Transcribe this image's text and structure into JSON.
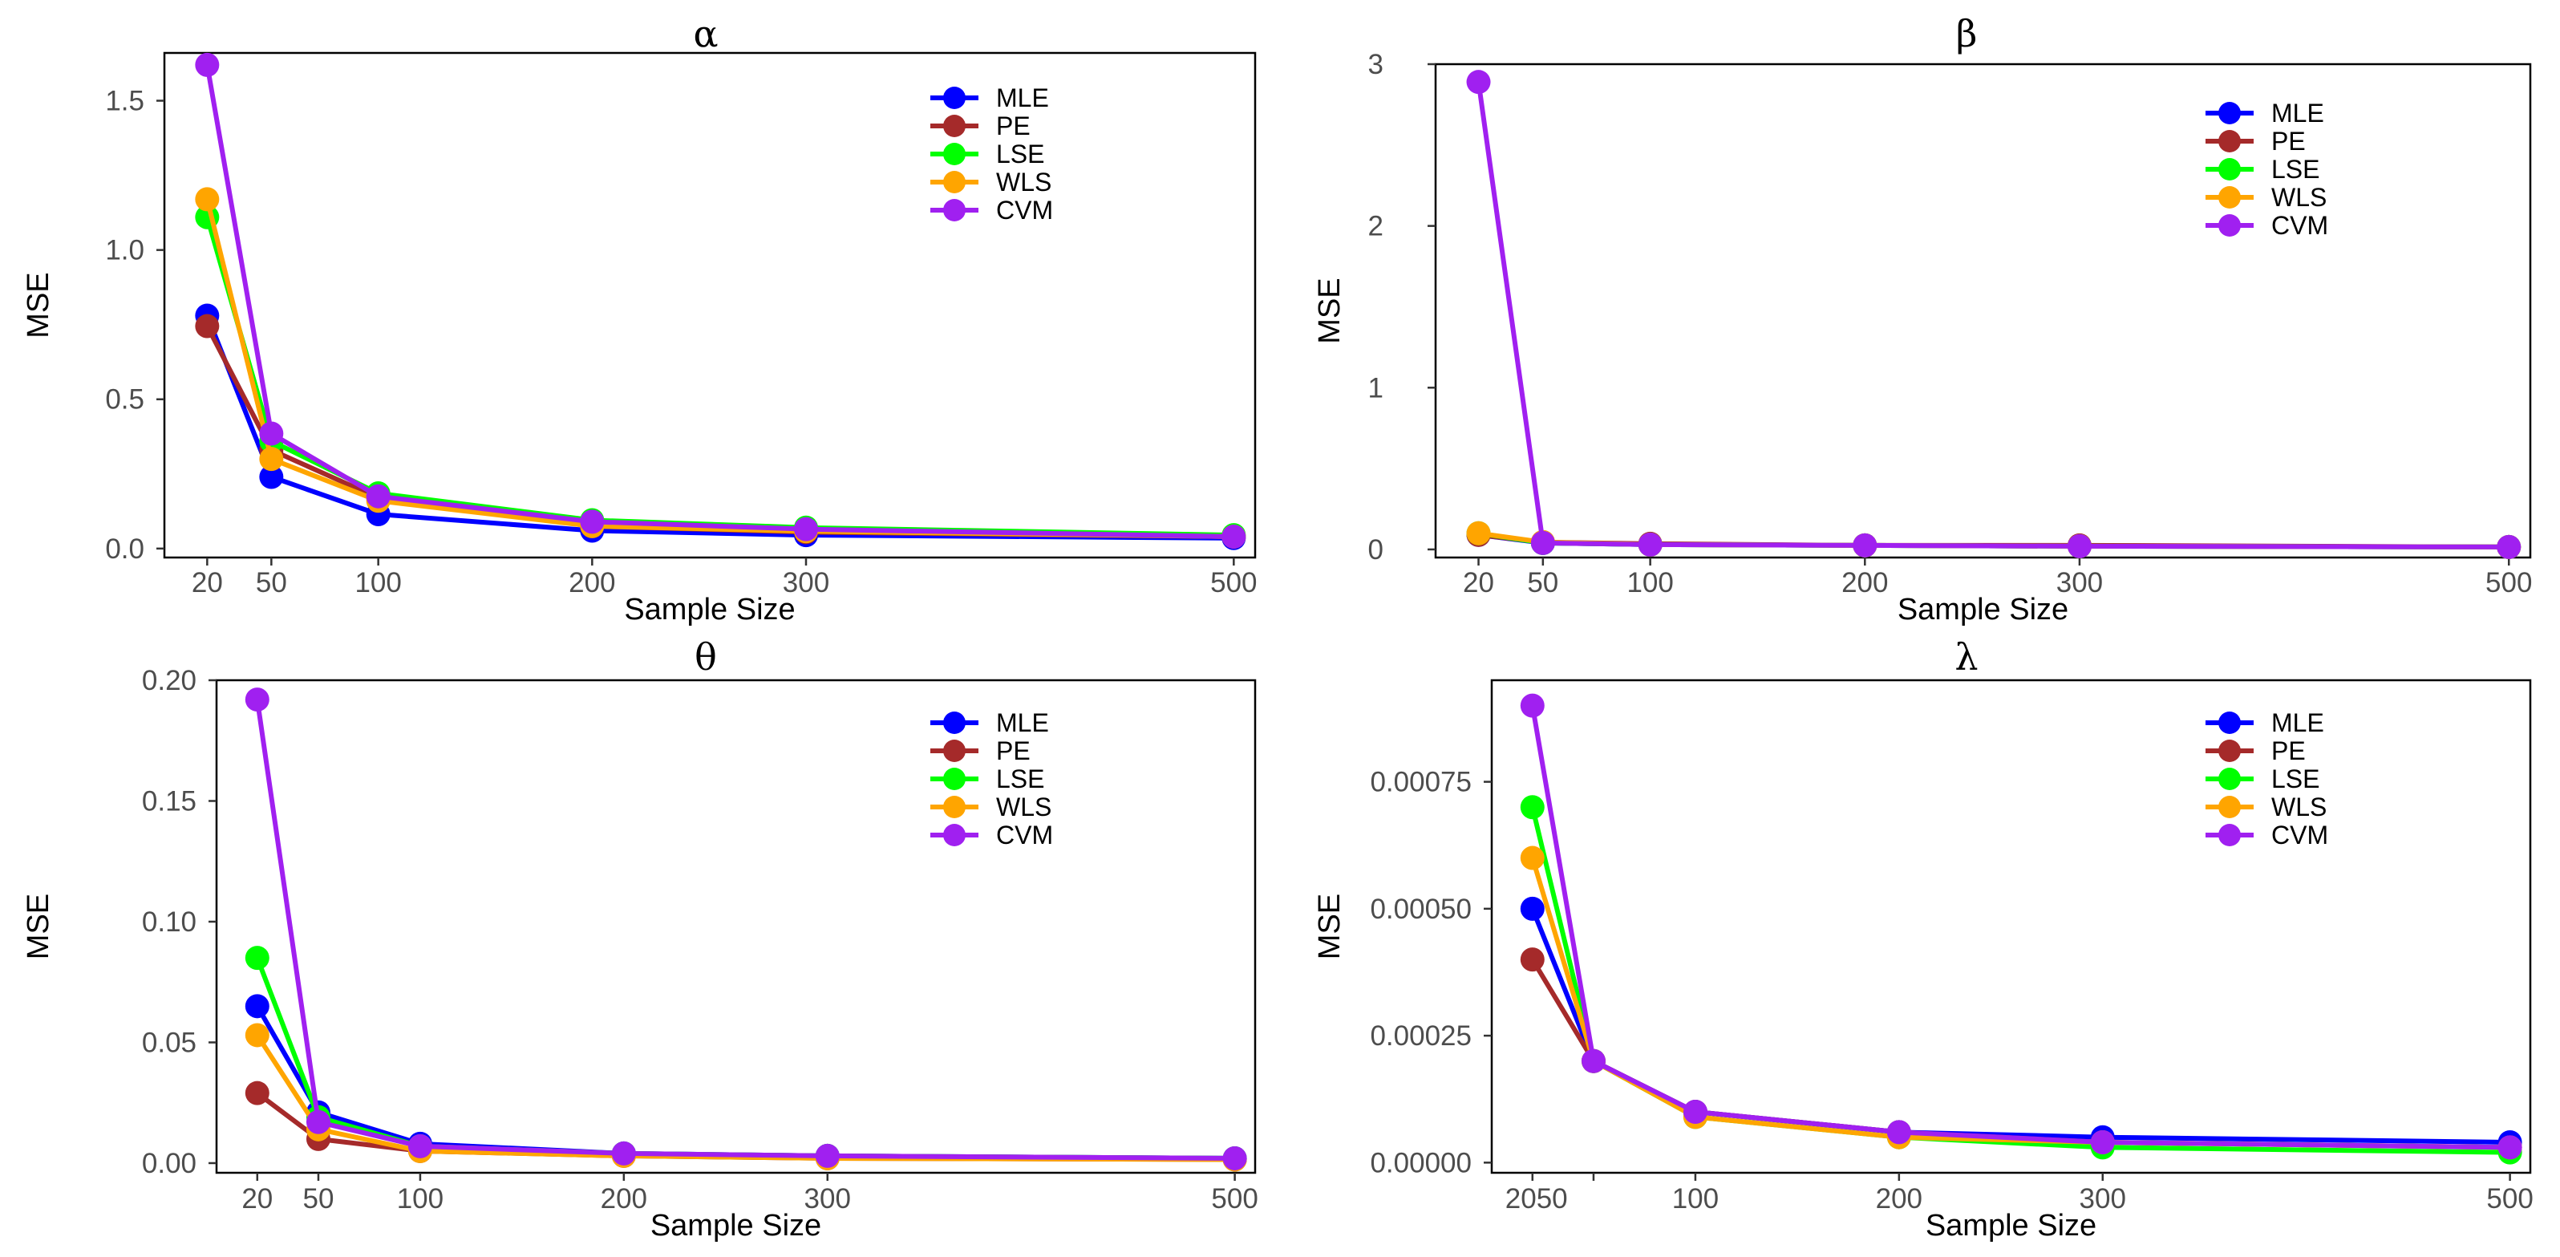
{
  "colors": {
    "MLE": "#0000ff",
    "PE": "#a52a2a",
    "LSE": "#00ff00",
    "WLS": "#ffa500",
    "CVM": "#a020f0"
  },
  "chart_data": [
    {
      "type": "line",
      "title": "α",
      "xlabel": "Sample Size",
      "ylabel": "MSE",
      "x": [
        20,
        50,
        100,
        200,
        300,
        500
      ],
      "x_ticks": [
        "20",
        "50",
        "100",
        "200",
        "300",
        "500"
      ],
      "xlim": [
        0,
        510
      ],
      "ylim": [
        -0.03,
        1.66
      ],
      "y_ticks": [
        0.0,
        0.5,
        1.0,
        1.5
      ],
      "y_tick_labels": [
        "0.0",
        "0.5",
        "1.0",
        "1.5"
      ],
      "legend": "top-right",
      "series": [
        {
          "name": "MLE",
          "values": [
            0.78,
            0.24,
            0.115,
            0.06,
            0.045,
            0.035
          ]
        },
        {
          "name": "PE",
          "values": [
            0.745,
            0.33,
            0.17,
            0.075,
            0.055,
            0.04
          ]
        },
        {
          "name": "LSE",
          "values": [
            1.11,
            0.36,
            0.185,
            0.095,
            0.07,
            0.045
          ]
        },
        {
          "name": "WLS",
          "values": [
            1.17,
            0.3,
            0.16,
            0.075,
            0.058,
            0.04
          ]
        },
        {
          "name": "CVM",
          "values": [
            1.62,
            0.385,
            0.175,
            0.09,
            0.065,
            0.04
          ]
        }
      ]
    },
    {
      "type": "line",
      "title": "β",
      "xlabel": "Sample Size",
      "ylabel": "MSE",
      "x": [
        20,
        50,
        100,
        200,
        300,
        500
      ],
      "x_ticks": [
        "20",
        "50",
        "100",
        "200",
        "300",
        "500"
      ],
      "xlim": [
        0,
        510
      ],
      "ylim": [
        -0.05,
        3.0
      ],
      "y_ticks": [
        0,
        1,
        2,
        3
      ],
      "y_tick_labels": [
        "0",
        "1",
        "2",
        "3"
      ],
      "legend": "top-right",
      "series": [
        {
          "name": "MLE",
          "values": [
            0.09,
            0.04,
            0.03,
            0.025,
            0.02,
            0.015
          ]
        },
        {
          "name": "PE",
          "values": [
            0.09,
            0.045,
            0.035,
            0.025,
            0.025,
            0.015
          ]
        },
        {
          "name": "LSE",
          "values": [
            0.1,
            0.04,
            0.03,
            0.025,
            0.02,
            0.015
          ]
        },
        {
          "name": "WLS",
          "values": [
            0.1,
            0.045,
            0.03,
            0.025,
            0.02,
            0.015
          ]
        },
        {
          "name": "CVM",
          "values": [
            2.89,
            0.04,
            0.03,
            0.025,
            0.02,
            0.015
          ]
        }
      ]
    },
    {
      "type": "line",
      "title": "θ",
      "xlabel": "Sample Size",
      "ylabel": "MSE",
      "x": [
        20,
        50,
        100,
        200,
        300,
        500
      ],
      "x_ticks": [
        "20",
        "50",
        "100",
        "200",
        "300",
        "500"
      ],
      "xlim": [
        0,
        510
      ],
      "ylim": [
        -0.004,
        0.2
      ],
      "y_ticks": [
        0.0,
        0.05,
        0.1,
        0.15,
        0.2
      ],
      "y_tick_labels": [
        "0.00",
        "0.05",
        "0.10",
        "0.15",
        "0.20"
      ],
      "legend": "top-right",
      "series": [
        {
          "name": "MLE",
          "values": [
            0.065,
            0.021,
            0.008,
            0.004,
            0.003,
            0.002
          ]
        },
        {
          "name": "PE",
          "values": [
            0.029,
            0.01,
            0.005,
            0.003,
            0.002,
            0.0015
          ]
        },
        {
          "name": "LSE",
          "values": [
            0.085,
            0.019,
            0.007,
            0.004,
            0.003,
            0.002
          ]
        },
        {
          "name": "WLS",
          "values": [
            0.053,
            0.014,
            0.005,
            0.003,
            0.002,
            0.0015
          ]
        },
        {
          "name": "CVM",
          "values": [
            0.192,
            0.017,
            0.007,
            0.004,
            0.003,
            0.002
          ]
        }
      ]
    },
    {
      "type": "line",
      "title": "λ",
      "xlabel": "Sample Size",
      "ylabel": "MSE",
      "x": [
        20,
        50,
        100,
        200,
        300,
        500
      ],
      "x_ticks": [
        "20",
        "50",
        "100",
        "200",
        "300",
        "500"
      ],
      "x_tick_display": [
        "2050",
        "",
        "100",
        "200",
        "300",
        "500"
      ],
      "xlim": [
        0,
        510
      ],
      "ylim": [
        -2e-05,
        0.00095
      ],
      "y_ticks": [
        0.0,
        0.00025,
        0.0005,
        0.00075
      ],
      "y_tick_labels": [
        "0.00000",
        "0.00025",
        "0.00050",
        "0.00075"
      ],
      "legend": "top-right",
      "series": [
        {
          "name": "MLE",
          "values": [
            0.0005,
            0.0002,
            0.0001,
            6e-05,
            5e-05,
            4e-05
          ]
        },
        {
          "name": "PE",
          "values": [
            0.0004,
            0.0002,
            0.0001,
            6e-05,
            4e-05,
            3e-05
          ]
        },
        {
          "name": "LSE",
          "values": [
            0.0007,
            0.0002,
            9e-05,
            5e-05,
            3e-05,
            2e-05
          ]
        },
        {
          "name": "WLS",
          "values": [
            0.0006,
            0.0002,
            9e-05,
            5e-05,
            4e-05,
            3e-05
          ]
        },
        {
          "name": "CVM",
          "values": [
            0.0009,
            0.0002,
            0.0001,
            6e-05,
            4e-05,
            3e-05
          ]
        }
      ]
    }
  ]
}
